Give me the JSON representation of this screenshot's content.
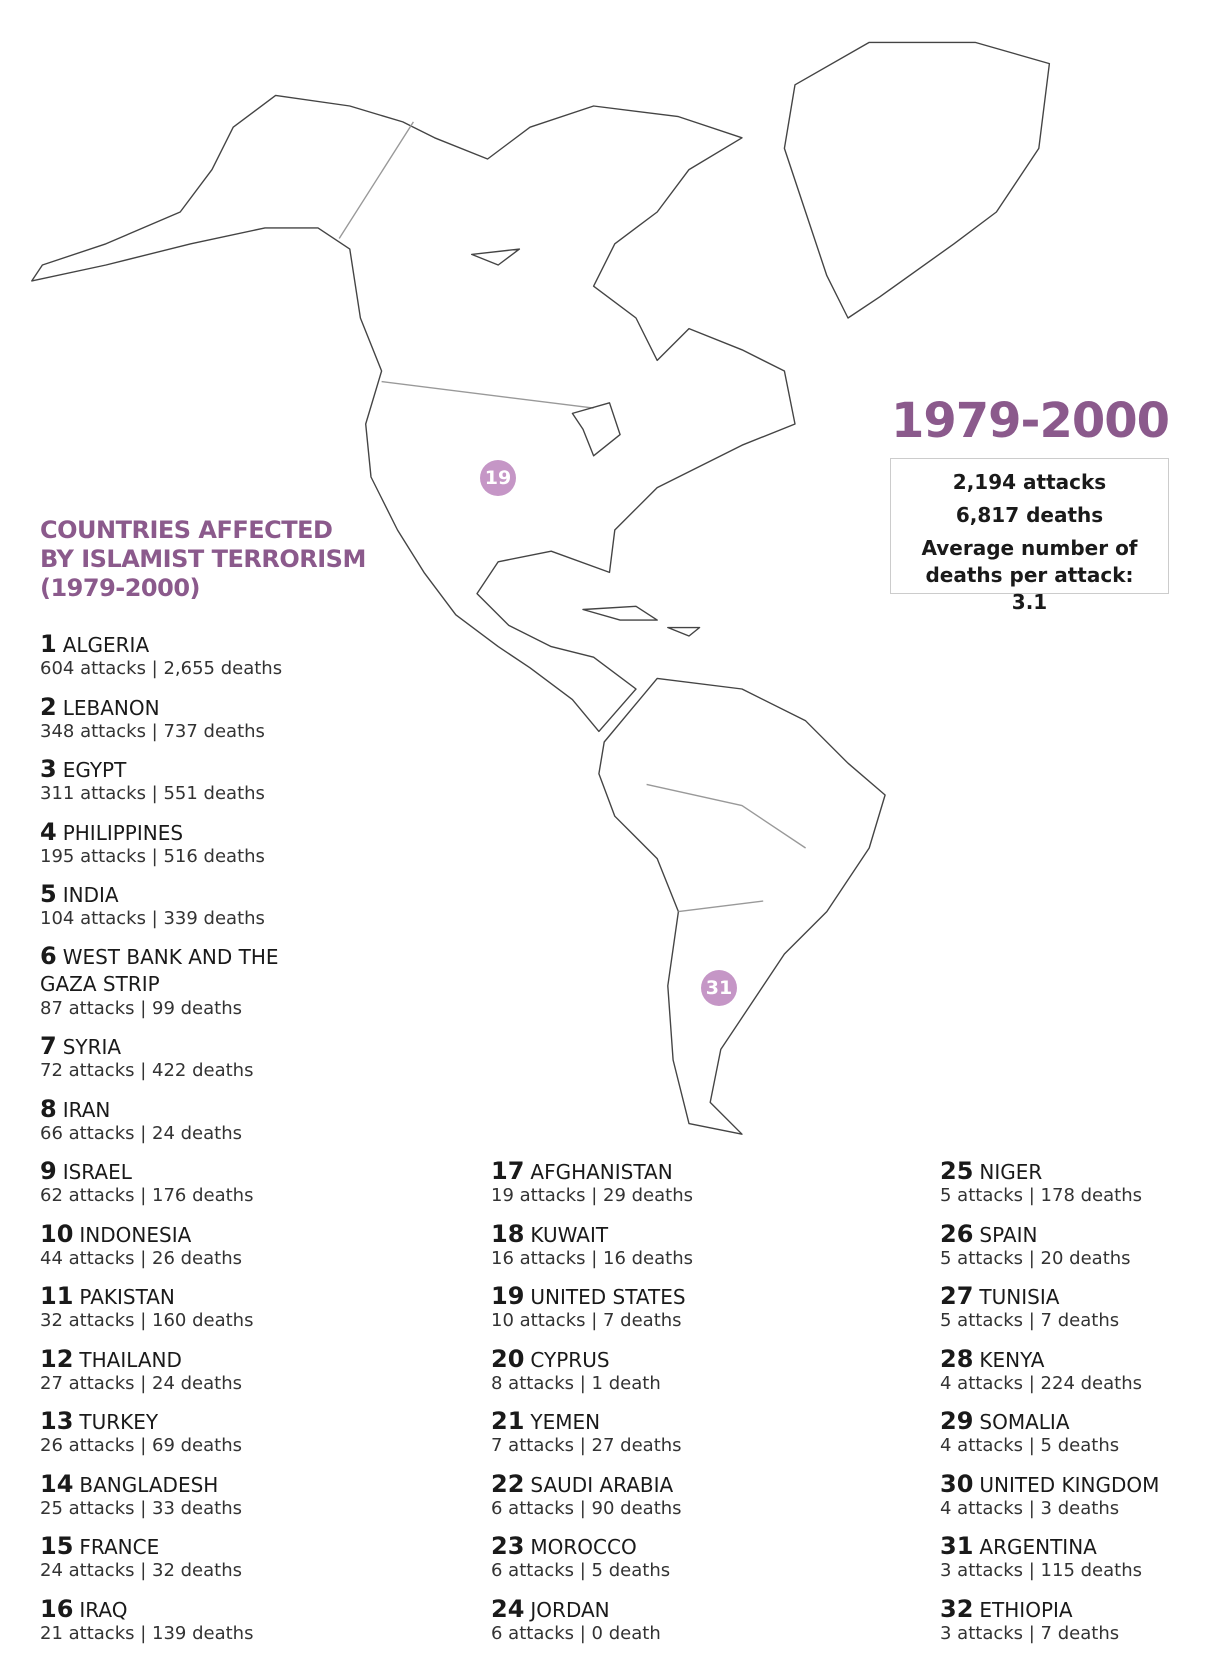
{
  "header": {
    "period": "1979-2000",
    "stats": [
      "2,194 attacks",
      "6,817 deaths",
      "Average number of deaths per attack: 3.1"
    ]
  },
  "map": {
    "markers": [
      19,
      31
    ]
  },
  "list": {
    "title": [
      "COUNTRIES AFFECTED",
      "BY ISLAMIST TERRORISM",
      "(1979-2000)"
    ],
    "countries": [
      {
        "rank": 1,
        "name": "ALGERIA",
        "detail": "604 attacks | 2,655 deaths"
      },
      {
        "rank": 2,
        "name": "LEBANON",
        "detail": "348 attacks | 737 deaths"
      },
      {
        "rank": 3,
        "name": "EGYPT",
        "detail": "311 attacks | 551 deaths"
      },
      {
        "rank": 4,
        "name": "PHILIPPINES",
        "detail": "195 attacks | 516 deaths"
      },
      {
        "rank": 5,
        "name": "INDIA",
        "detail": "104 attacks | 339 deaths"
      },
      {
        "rank": 6,
        "name": "WEST BANK AND THE GAZA STRIP",
        "detail": "87 attacks | 99 deaths"
      },
      {
        "rank": 7,
        "name": "SYRIA",
        "detail": "72 attacks | 422 deaths"
      },
      {
        "rank": 8,
        "name": "IRAN",
        "detail": "66 attacks | 24 deaths"
      },
      {
        "rank": 9,
        "name": "ISRAEL",
        "detail": "62 attacks | 176 deaths"
      },
      {
        "rank": 10,
        "name": "INDONESIA",
        "detail": "44 attacks | 26 deaths"
      },
      {
        "rank": 11,
        "name": "PAKISTAN",
        "detail": "32 attacks | 160 deaths"
      },
      {
        "rank": 12,
        "name": "THAILAND",
        "detail": "27 attacks | 24 deaths"
      },
      {
        "rank": 13,
        "name": "TURKEY",
        "detail": "26 attacks | 69 deaths"
      },
      {
        "rank": 14,
        "name": "BANGLADESH",
        "detail": "25 attacks | 33 deaths"
      },
      {
        "rank": 15,
        "name": "FRANCE",
        "detail": "24 attacks | 32 deaths"
      },
      {
        "rank": 16,
        "name": "IRAQ",
        "detail": "21 attacks | 139 deaths"
      },
      {
        "rank": 17,
        "name": "AFGHANISTAN",
        "detail": "19 attacks | 29 deaths"
      },
      {
        "rank": 18,
        "name": "KUWAIT",
        "detail": "16 attacks | 16 deaths"
      },
      {
        "rank": 19,
        "name": "UNITED STATES",
        "detail": "10 attacks | 7 deaths"
      },
      {
        "rank": 20,
        "name": "CYPRUS",
        "detail": "8 attacks | 1 death"
      },
      {
        "rank": 21,
        "name": "YEMEN",
        "detail": "7 attacks | 27 deaths"
      },
      {
        "rank": 22,
        "name": "SAUDI ARABIA",
        "detail": "6 attacks | 90 deaths"
      },
      {
        "rank": 23,
        "name": "MOROCCO",
        "detail": "6 attacks | 5 deaths"
      },
      {
        "rank": 24,
        "name": "JORDAN",
        "detail": "6 attacks | 0 death"
      },
      {
        "rank": 25,
        "name": "NIGER",
        "detail": "5 attacks | 178 deaths"
      },
      {
        "rank": 26,
        "name": "SPAIN",
        "detail": "5 attacks | 20 deaths"
      },
      {
        "rank": 27,
        "name": "TUNISIA",
        "detail": "5 attacks | 7 deaths"
      },
      {
        "rank": 28,
        "name": "KENYA",
        "detail": "4 attacks | 224 deaths"
      },
      {
        "rank": 29,
        "name": "SOMALIA",
        "detail": "4 attacks | 5 deaths"
      },
      {
        "rank": 30,
        "name": "UNITED KINGDOM",
        "detail": "4 attacks | 3 deaths"
      },
      {
        "rank": 31,
        "name": "ARGENTINA",
        "detail": "3 attacks | 115 deaths"
      },
      {
        "rank": 32,
        "name": "ETHIOPIA",
        "detail": "3 attacks | 7 deaths"
      }
    ]
  }
}
